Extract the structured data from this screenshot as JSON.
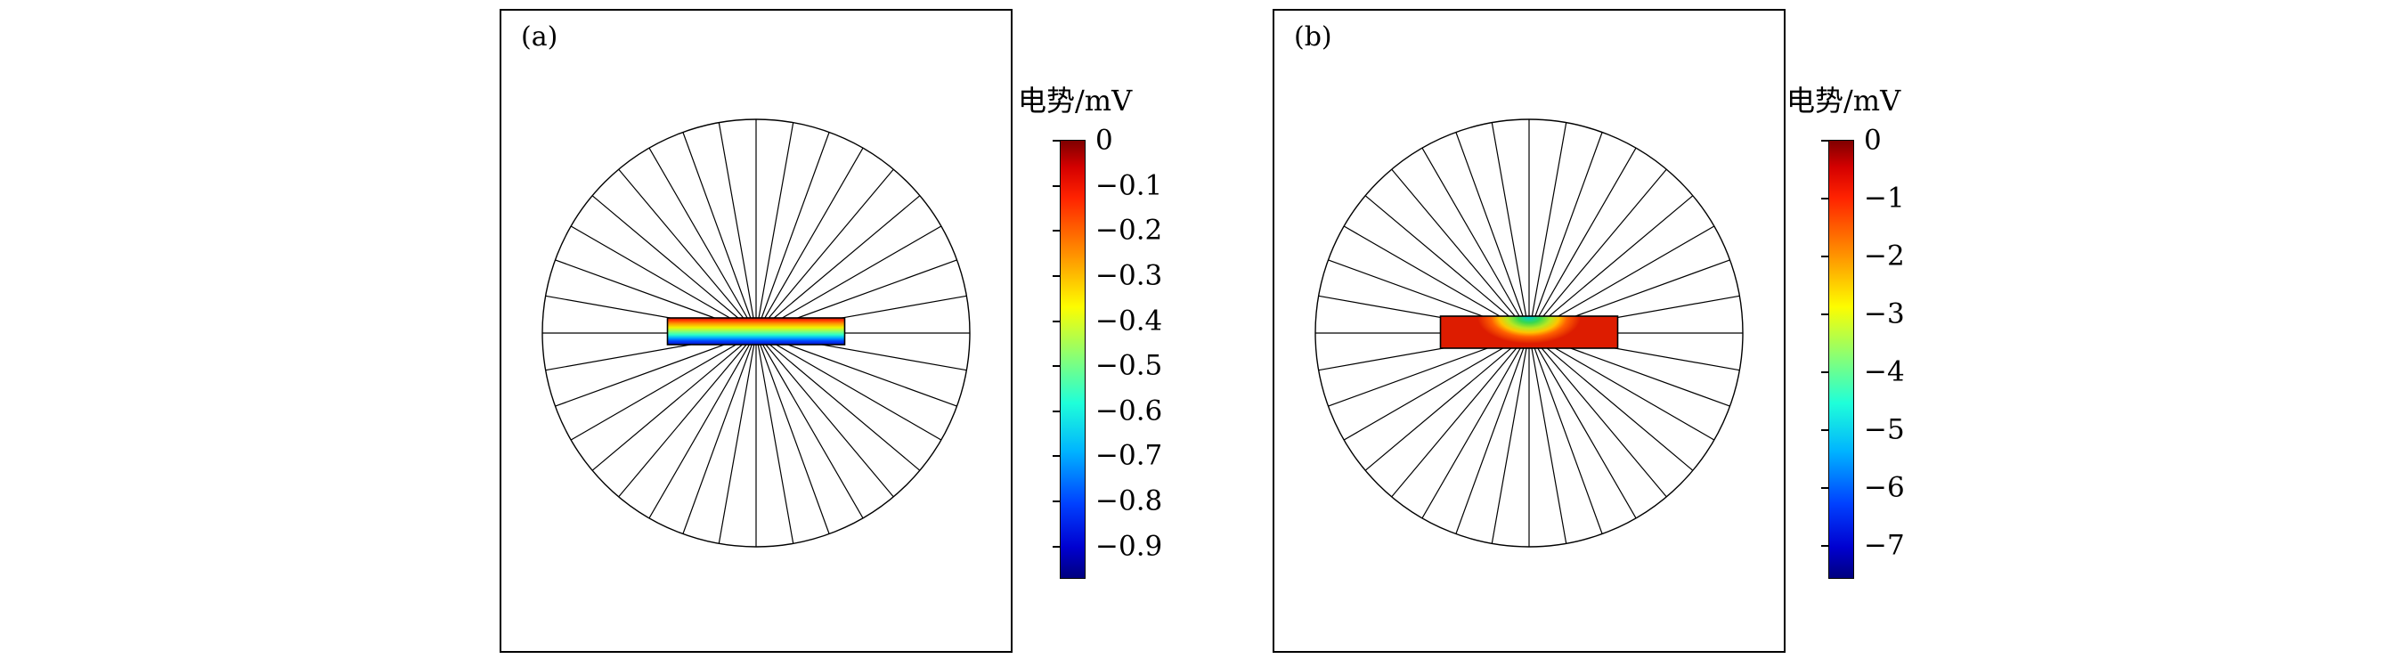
{
  "figure": {
    "panels": [
      {
        "label": "(a)",
        "colorbar": {
          "title": "电势/mV",
          "tick_labels": [
            "0",
            "−0.1",
            "−0.2",
            "−0.3",
            "−0.4",
            "−0.5",
            "−0.6",
            "−0.7",
            "−0.8",
            "−0.9"
          ]
        }
      },
      {
        "label": "(b)",
        "colorbar": {
          "title": "电势/mV",
          "tick_labels": [
            "0",
            "−1",
            "−2",
            "−3",
            "−4",
            "−5",
            "−6",
            "−7"
          ]
        }
      }
    ]
  },
  "chart_data": [
    {
      "type": "heatmap",
      "panel": "(a)",
      "title": "电势/mV",
      "colormap": "jet",
      "colorbar_range": [
        -0.97,
        0
      ],
      "colorbar_tick_values": [
        0,
        -0.1,
        -0.2,
        -0.3,
        -0.4,
        -0.5,
        -0.6,
        -0.7,
        -0.8,
        -0.9
      ],
      "colorbar_tick_labels": [
        "0",
        "−0.1",
        "−0.2",
        "−0.3",
        "−0.4",
        "−0.5",
        "−0.6",
        "−0.7",
        "−0.8",
        "−0.9"
      ],
      "mesh": {
        "shape": "circle with radial spokes",
        "spokes": 36
      },
      "membrane": {
        "shape": "thin horizontal rectangle at circle center",
        "potential_top_mV": 0,
        "potential_bottom_mV": -0.95,
        "pattern": "linear vertical gradient from 0 mV (red) at top surface to about −0.95 mV (blue) at bottom surface"
      }
    },
    {
      "type": "heatmap",
      "panel": "(b)",
      "title": "电势/mV",
      "colormap": "jet",
      "colorbar_range": [
        -7.55,
        0
      ],
      "colorbar_tick_values": [
        0,
        -1,
        -2,
        -3,
        -4,
        -5,
        -6,
        -7
      ],
      "colorbar_tick_labels": [
        "0",
        "−1",
        "−2",
        "−3",
        "−4",
        "−5",
        "−6",
        "−7"
      ],
      "mesh": {
        "shape": "circle with radial spokes",
        "spokes": 36
      },
      "membrane": {
        "shape": "thin horizontal rectangle at circle center",
        "pattern": "mostly near 0 mV (red) with a localized dip of about −3 to −4 mV (green–cyan) at the top center"
      }
    }
  ],
  "colors": {
    "background": "#ffffff",
    "stroke": "#000000",
    "colormap_top": "#7f0000",
    "colormap_bottom": "#00007f"
  }
}
